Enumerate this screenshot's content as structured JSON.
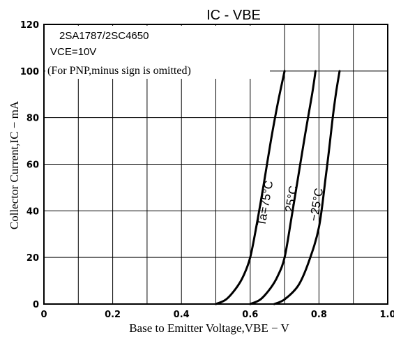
{
  "chart_data": {
    "type": "line",
    "title": "IC - VBE",
    "xlabel": "Base to Emitter Voltage,VBE − V",
    "ylabel": "Collector Current,IC − mA",
    "xlim": [
      0,
      1.0
    ],
    "ylim": [
      0,
      120
    ],
    "x_ticks": [
      "0",
      "0.2",
      "0.4",
      "0.6",
      "0.8",
      "1.0"
    ],
    "y_ticks": [
      "0",
      "20",
      "40",
      "60",
      "80",
      "100",
      "120"
    ],
    "grid": true,
    "annotations": {
      "device": "2SA1787/2SC4650",
      "condition": "VCE=10V",
      "note": "(For PNP,minus sign is omitted)"
    },
    "series": [
      {
        "name": "Ta=75°C",
        "x": [
          0.5,
          0.53,
          0.56,
          0.58,
          0.6,
          0.62,
          0.64,
          0.66,
          0.68,
          0.7
        ],
        "y": [
          0,
          2,
          7,
          12,
          20,
          35,
          52,
          70,
          86,
          100
        ]
      },
      {
        "name": "25°C",
        "x": [
          0.6,
          0.63,
          0.66,
          0.68,
          0.7,
          0.72,
          0.74,
          0.76,
          0.78,
          0.79
        ],
        "y": [
          0,
          2,
          7,
          12,
          20,
          37,
          55,
          73,
          90,
          100
        ]
      },
      {
        "name": "−25°C",
        "x": [
          0.67,
          0.7,
          0.74,
          0.77,
          0.8,
          0.82,
          0.83,
          0.84,
          0.85,
          0.86
        ],
        "y": [
          0,
          2,
          8,
          18,
          33,
          55,
          67,
          80,
          91,
          100
        ]
      }
    ]
  }
}
